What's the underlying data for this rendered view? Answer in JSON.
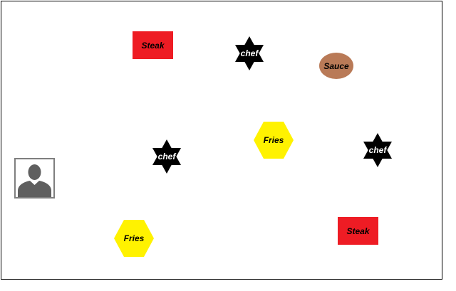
{
  "game": {
    "items": {
      "steak_label": "Steak",
      "sauce_label": "Sauce",
      "chef_label": "chef",
      "fries_label": "Fries"
    },
    "player": {
      "icon": "person-silhouette-icon"
    },
    "colors": {
      "steak": "#ee1c24",
      "sauce": "#b97a57",
      "chef": "#000000",
      "fries": "#fff200",
      "player_border": "#7f7f7f",
      "player_silhouette": "#5f5f5f"
    }
  }
}
